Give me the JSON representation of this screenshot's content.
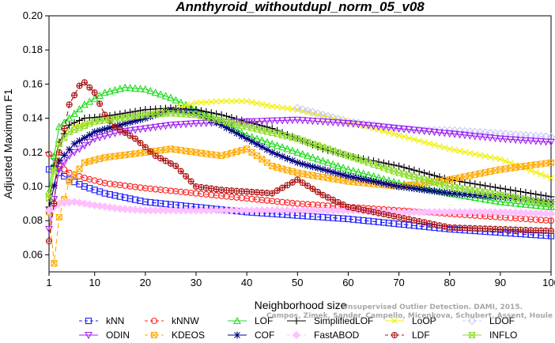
{
  "chart_data": {
    "type": "line",
    "title": "Annthyroid_withoutdupl_norm_05_v08",
    "xlabel": "Neighborhood size",
    "ylabel": "Adjusted Maximum F1",
    "xlim": [
      1,
      100
    ],
    "ylim": [
      0.05,
      0.2
    ],
    "x_ticks": [
      1,
      10,
      20,
      30,
      40,
      50,
      60,
      70,
      80,
      90,
      100
    ],
    "y_ticks": [
      0.06,
      0.08,
      0.1,
      0.12,
      0.14,
      0.16,
      0.18,
      0.2
    ],
    "y_tick_labels": [
      "0.06",
      "0.08",
      "0.10",
      "0.12",
      "0.14",
      "0.16",
      "0.18",
      "0.20"
    ],
    "grid": false,
    "legend_position": "bottom",
    "watermark": "Campos, Zimek, Sander, Campello, Micenkova, Schubert, Assent, Houle",
    "watermark_prefix": "Unsupervised Outlier Detection. DAMI, 2015.",
    "series": [
      {
        "name": "kNN",
        "color": "#2020ff",
        "marker": "square",
        "dash": "6,4",
        "points": [
          [
            1,
            0.11
          ],
          [
            2,
            0.111
          ],
          [
            3,
            0.108
          ],
          [
            5,
            0.104
          ],
          [
            8,
            0.1
          ],
          [
            12,
            0.096
          ],
          [
            20,
            0.091
          ],
          [
            30,
            0.088
          ],
          [
            40,
            0.085
          ],
          [
            50,
            0.083
          ],
          [
            60,
            0.081
          ],
          [
            70,
            0.078
          ],
          [
            80,
            0.075
          ],
          [
            90,
            0.073
          ],
          [
            100,
            0.071
          ]
        ]
      },
      {
        "name": "kNNW",
        "color": "#ff2020",
        "marker": "circle",
        "dash": "6,4",
        "points": [
          [
            1,
            0.119
          ],
          [
            2,
            0.117
          ],
          [
            3,
            0.112
          ],
          [
            5,
            0.108
          ],
          [
            8,
            0.105
          ],
          [
            12,
            0.102
          ],
          [
            20,
            0.099
          ],
          [
            30,
            0.096
          ],
          [
            40,
            0.093
          ],
          [
            50,
            0.09
          ],
          [
            60,
            0.088
          ],
          [
            70,
            0.086
          ],
          [
            80,
            0.084
          ],
          [
            90,
            0.082
          ],
          [
            100,
            0.08
          ]
        ]
      },
      {
        "name": "LOF",
        "color": "#20dd20",
        "marker": "triangle",
        "dash": "",
        "points": [
          [
            1,
            0.097
          ],
          [
            2,
            0.118
          ],
          [
            3,
            0.135
          ],
          [
            5,
            0.14
          ],
          [
            8,
            0.148
          ],
          [
            12,
            0.155
          ],
          [
            16,
            0.158
          ],
          [
            20,
            0.157
          ],
          [
            25,
            0.152
          ],
          [
            30,
            0.145
          ],
          [
            35,
            0.138
          ],
          [
            40,
            0.13
          ],
          [
            50,
            0.12
          ],
          [
            60,
            0.11
          ],
          [
            70,
            0.102
          ],
          [
            80,
            0.096
          ],
          [
            90,
            0.091
          ],
          [
            100,
            0.088
          ]
        ]
      },
      {
        "name": "SimplifiedLOF",
        "color": "#000000",
        "marker": "plus",
        "dash": "",
        "points": [
          [
            1,
            0.088
          ],
          [
            2,
            0.112
          ],
          [
            3,
            0.126
          ],
          [
            5,
            0.136
          ],
          [
            8,
            0.14
          ],
          [
            12,
            0.141
          ],
          [
            16,
            0.143
          ],
          [
            20,
            0.145
          ],
          [
            25,
            0.146
          ],
          [
            30,
            0.145
          ],
          [
            35,
            0.142
          ],
          [
            40,
            0.138
          ],
          [
            45,
            0.134
          ],
          [
            50,
            0.128
          ],
          [
            55,
            0.122
          ],
          [
            60,
            0.118
          ],
          [
            70,
            0.112
          ],
          [
            80,
            0.104
          ],
          [
            90,
            0.099
          ],
          [
            100,
            0.094
          ]
        ]
      },
      {
        "name": "LoOP",
        "color": "#f0f000",
        "marker": "x",
        "dash": "",
        "points": [
          [
            1,
            0.095
          ],
          [
            3,
            0.125
          ],
          [
            6,
            0.135
          ],
          [
            10,
            0.138
          ],
          [
            15,
            0.14
          ],
          [
            20,
            0.142
          ],
          [
            25,
            0.145
          ],
          [
            30,
            0.149
          ],
          [
            35,
            0.15
          ],
          [
            40,
            0.15
          ],
          [
            45,
            0.147
          ],
          [
            50,
            0.145
          ],
          [
            60,
            0.138
          ],
          [
            70,
            0.13
          ],
          [
            80,
            0.122
          ],
          [
            90,
            0.116
          ],
          [
            100,
            0.105
          ]
        ]
      },
      {
        "name": "LDOF",
        "color": "#c8c8ff",
        "marker": "diamond",
        "dash": "6,4",
        "points": [
          [
            50,
            0.146
          ],
          [
            55,
            0.142
          ],
          [
            60,
            0.138
          ],
          [
            65,
            0.136
          ],
          [
            70,
            0.134
          ],
          [
            75,
            0.133
          ],
          [
            80,
            0.133
          ],
          [
            85,
            0.132
          ],
          [
            90,
            0.131
          ],
          [
            95,
            0.13
          ],
          [
            100,
            0.129
          ]
        ]
      },
      {
        "name": "ODIN",
        "color": "#a020f0",
        "marker": "triangle-down",
        "dash": "",
        "points": [
          [
            1,
            0.075
          ],
          [
            3,
            0.11
          ],
          [
            5,
            0.118
          ],
          [
            10,
            0.128
          ],
          [
            15,
            0.132
          ],
          [
            20,
            0.134
          ],
          [
            25,
            0.136
          ],
          [
            30,
            0.137
          ],
          [
            40,
            0.138
          ],
          [
            50,
            0.139
          ],
          [
            60,
            0.137
          ],
          [
            70,
            0.134
          ],
          [
            80,
            0.131
          ],
          [
            90,
            0.128
          ],
          [
            100,
            0.126
          ]
        ]
      },
      {
        "name": "KDEOS",
        "color": "#ffaa00",
        "marker": "square-x",
        "dash": "6,4",
        "points": [
          [
            1,
            0.085
          ],
          [
            2,
            0.055
          ],
          [
            3,
            0.082
          ],
          [
            5,
            0.103
          ],
          [
            8,
            0.114
          ],
          [
            12,
            0.117
          ],
          [
            20,
            0.12
          ],
          [
            25,
            0.122
          ],
          [
            30,
            0.12
          ],
          [
            35,
            0.118
          ],
          [
            40,
            0.122
          ],
          [
            45,
            0.112
          ],
          [
            50,
            0.108
          ],
          [
            60,
            0.103
          ],
          [
            70,
            0.1
          ],
          [
            80,
            0.104
          ],
          [
            90,
            0.11
          ],
          [
            100,
            0.114
          ]
        ]
      },
      {
        "name": "COF",
        "color": "#000080",
        "marker": "asterisk",
        "dash": "",
        "points": [
          [
            1,
            0.086
          ],
          [
            3,
            0.115
          ],
          [
            6,
            0.125
          ],
          [
            10,
            0.132
          ],
          [
            15,
            0.136
          ],
          [
            20,
            0.14
          ],
          [
            25,
            0.145
          ],
          [
            30,
            0.143
          ],
          [
            35,
            0.136
          ],
          [
            40,
            0.128
          ],
          [
            45,
            0.12
          ],
          [
            50,
            0.114
          ],
          [
            60,
            0.106
          ],
          [
            70,
            0.1
          ],
          [
            80,
            0.096
          ],
          [
            90,
            0.094
          ],
          [
            100,
            0.091
          ]
        ]
      },
      {
        "name": "FastABOD",
        "color": "#ffc0ff",
        "marker": "diamond-filled",
        "dash": "6,4",
        "points": [
          [
            1,
            0.086
          ],
          [
            3,
            0.09
          ],
          [
            6,
            0.091
          ],
          [
            10,
            0.089
          ],
          [
            15,
            0.087
          ],
          [
            20,
            0.086
          ],
          [
            30,
            0.086
          ],
          [
            40,
            0.086
          ],
          [
            50,
            0.086
          ],
          [
            60,
            0.086
          ],
          [
            70,
            0.085
          ],
          [
            80,
            0.085
          ],
          [
            90,
            0.085
          ],
          [
            100,
            0.084
          ]
        ]
      },
      {
        "name": "LDF",
        "color": "#aa1010",
        "marker": "circle-plus",
        "dash": "6,4",
        "points": [
          [
            1,
            0.068
          ],
          [
            2,
            0.09
          ],
          [
            3,
            0.12
          ],
          [
            5,
            0.148
          ],
          [
            7,
            0.159
          ],
          [
            8,
            0.161
          ],
          [
            10,
            0.155
          ],
          [
            12,
            0.142
          ],
          [
            14,
            0.135
          ],
          [
            18,
            0.128
          ],
          [
            22,
            0.118
          ],
          [
            26,
            0.112
          ],
          [
            30,
            0.1
          ],
          [
            35,
            0.098
          ],
          [
            40,
            0.097
          ],
          [
            45,
            0.096
          ],
          [
            50,
            0.104
          ],
          [
            55,
            0.095
          ],
          [
            60,
            0.088
          ],
          [
            70,
            0.082
          ],
          [
            80,
            0.076
          ],
          [
            90,
            0.075
          ],
          [
            100,
            0.074
          ]
        ]
      },
      {
        "name": "INFLO",
        "color": "#90dd30",
        "marker": "square-x",
        "dash": "",
        "points": [
          [
            1,
            0.093
          ],
          [
            3,
            0.125
          ],
          [
            5,
            0.132
          ],
          [
            10,
            0.138
          ],
          [
            15,
            0.14
          ],
          [
            20,
            0.142
          ],
          [
            25,
            0.143
          ],
          [
            30,
            0.142
          ],
          [
            40,
            0.135
          ],
          [
            50,
            0.128
          ],
          [
            60,
            0.118
          ],
          [
            70,
            0.108
          ],
          [
            80,
            0.1
          ],
          [
            90,
            0.095
          ],
          [
            100,
            0.09
          ]
        ]
      }
    ]
  }
}
